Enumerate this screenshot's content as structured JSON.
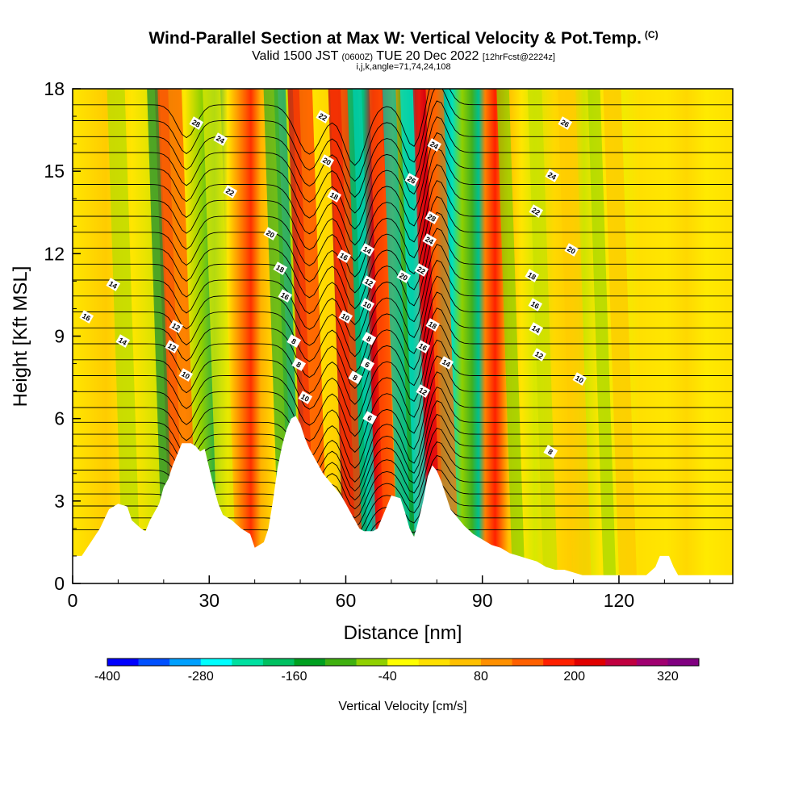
{
  "header": {
    "title": "Wind-Parallel Section at Max W: Vertical Velocity & Pot.Temp.",
    "copyright": "(C)",
    "valid_prefix": "Valid 1500 JST",
    "valid_z": "(0600Z)",
    "valid_date": "TUE 20 Dec 2022",
    "forecast": "[12hrFcst@2224z]",
    "indices": "i,j,k,angle=71,74,24,108"
  },
  "chart_data": {
    "type": "heatmap",
    "xlabel": "Distance [nm]",
    "ylabel": "Height [Kft MSL]",
    "xlim": [
      0,
      145
    ],
    "ylim": [
      0,
      18
    ],
    "x_ticks": [
      "0",
      "30",
      "60",
      "90",
      "120"
    ],
    "x_tick_values": [
      0,
      30,
      60,
      90,
      120
    ],
    "y_ticks": [
      "0",
      "3",
      "6",
      "9",
      "12",
      "15",
      "18"
    ],
    "y_tick_values": [
      0,
      3,
      6,
      9,
      12,
      15,
      18
    ],
    "colorbar": {
      "label": "Vertical Velocity [cm/s]",
      "range": [
        -400,
        360
      ],
      "labels": [
        "-400",
        "-280",
        "-160",
        "-40",
        "80",
        "200",
        "320"
      ],
      "label_values": [
        -400,
        -280,
        -160,
        -40,
        80,
        200,
        320
      ],
      "colors": [
        "#0000ff",
        "#0050ff",
        "#00a0ff",
        "#00ffff",
        "#00e0a0",
        "#00c060",
        "#00a020",
        "#40b010",
        "#90d000",
        "#ffff00",
        "#ffe000",
        "#ffc000",
        "#ff9000",
        "#ff6000",
        "#ff2000",
        "#e00000",
        "#c00040",
        "#a00070",
        "#800080"
      ]
    },
    "terrain": [
      [
        0,
        1
      ],
      [
        2,
        1
      ],
      [
        4,
        1.5
      ],
      [
        6,
        2
      ],
      [
        8,
        2.7
      ],
      [
        10,
        2.9
      ],
      [
        12,
        2.8
      ],
      [
        13,
        2.3
      ],
      [
        15,
        2.0
      ],
      [
        16,
        1.9
      ],
      [
        17,
        2.3
      ],
      [
        19,
        2.9
      ],
      [
        20,
        3.5
      ],
      [
        21,
        3.8
      ],
      [
        22,
        4.3
      ],
      [
        23,
        4.7
      ],
      [
        24,
        5.1
      ],
      [
        26,
        5.1
      ],
      [
        27,
        5.0
      ],
      [
        28,
        4.8
      ],
      [
        29,
        4.9
      ],
      [
        30,
        4.2
      ],
      [
        31,
        3.5
      ],
      [
        32,
        2.9
      ],
      [
        33,
        2.5
      ],
      [
        35,
        2.3
      ],
      [
        37,
        2.0
      ],
      [
        39,
        1.8
      ],
      [
        40,
        1.3
      ],
      [
        42,
        1.5
      ],
      [
        43,
        2.0
      ],
      [
        44,
        3.0
      ],
      [
        45,
        4.2
      ],
      [
        46,
        5.0
      ],
      [
        47,
        5.6
      ],
      [
        48,
        6.0
      ],
      [
        49,
        6.1
      ],
      [
        50,
        5.8
      ],
      [
        51,
        5.3
      ],
      [
        52,
        4.9
      ],
      [
        53,
        4.6
      ],
      [
        55,
        4.0
      ],
      [
        57,
        3.6
      ],
      [
        59,
        3.2
      ],
      [
        60,
        2.9
      ],
      [
        61,
        2.6
      ],
      [
        62,
        2.3
      ],
      [
        63,
        2.0
      ],
      [
        64,
        1.9
      ],
      [
        66,
        1.9
      ],
      [
        67,
        2.0
      ],
      [
        68,
        2.4
      ],
      [
        69,
        2.8
      ],
      [
        70,
        3.2
      ],
      [
        72,
        3.1
      ],
      [
        73,
        2.6
      ],
      [
        74,
        2.0
      ],
      [
        75,
        1.7
      ],
      [
        76,
        2.3
      ],
      [
        77,
        3.0
      ],
      [
        78,
        3.9
      ],
      [
        79,
        4.3
      ],
      [
        80,
        4.1
      ],
      [
        81,
        3.7
      ],
      [
        82,
        3.2
      ],
      [
        83,
        2.7
      ],
      [
        84,
        2.5
      ],
      [
        86,
        2.1
      ],
      [
        88,
        1.8
      ],
      [
        90,
        1.6
      ],
      [
        92,
        1.4
      ],
      [
        94,
        1.3
      ],
      [
        96,
        1.1
      ],
      [
        98,
        1.0
      ],
      [
        100,
        0.9
      ],
      [
        102,
        0.8
      ],
      [
        104,
        0.6
      ],
      [
        106,
        0.5
      ],
      [
        108,
        0.5
      ],
      [
        110,
        0.4
      ],
      [
        112,
        0.3
      ],
      [
        126,
        0.3
      ],
      [
        128,
        0.6
      ],
      [
        129,
        1.0
      ],
      [
        131,
        1.0
      ],
      [
        132,
        0.6
      ],
      [
        133,
        0.3
      ],
      [
        145,
        0.3
      ]
    ],
    "contour_labels": [
      "28",
      "24",
      "22",
      "20",
      "18",
      "16",
      "16",
      "14",
      "14",
      "12",
      "12",
      "10",
      "10",
      "8",
      "8",
      "6",
      "6",
      "8",
      "10",
      "12",
      "14",
      "16",
      "18",
      "20",
      "22",
      "24",
      "26",
      "28",
      "24",
      "22",
      "20",
      "18",
      "16",
      "14",
      "12",
      "10",
      "8",
      "26",
      "24",
      "22",
      "20",
      "18",
      "16",
      "14",
      "12",
      "10",
      "8"
    ]
  }
}
